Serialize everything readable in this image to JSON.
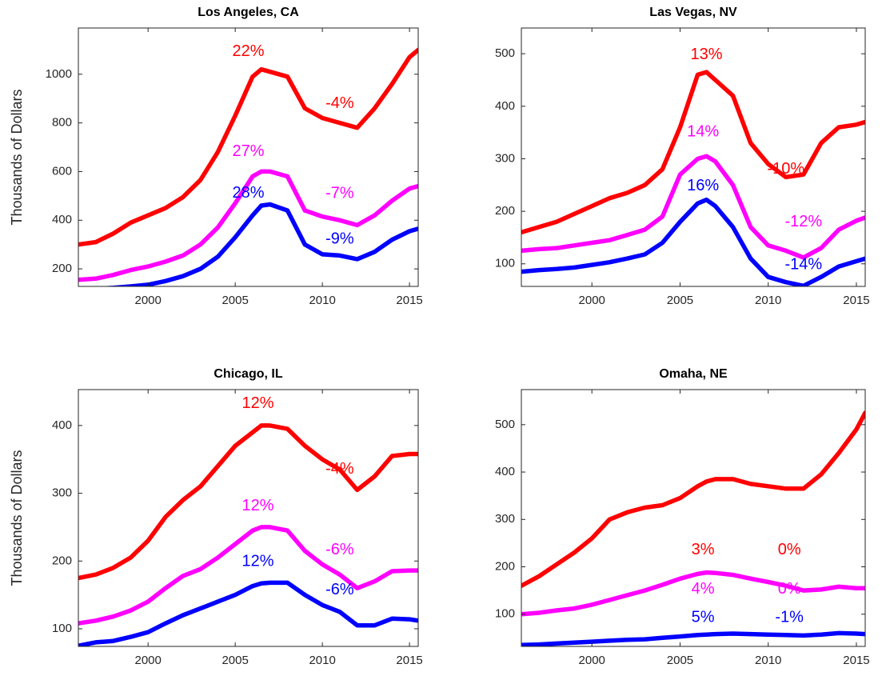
{
  "chart_data": [
    {
      "type": "line",
      "title": "Los Angeles, CA",
      "ylabel": "Thousands of Dollars",
      "x": [
        1996,
        1997,
        1998,
        1999,
        2000,
        2001,
        2002,
        2003,
        2004,
        2005,
        2006,
        2006.5,
        2007,
        2008,
        2009,
        2010,
        2011,
        2012,
        2013,
        2014,
        2015,
        2015.5
      ],
      "series": [
        {
          "color": "#ff0000",
          "values": [
            300,
            310,
            345,
            390,
            420,
            450,
            495,
            565,
            680,
            830,
            990,
            1020,
            1010,
            990,
            860,
            820,
            800,
            780,
            860,
            960,
            1070,
            1100
          ]
        },
        {
          "color": "#ff00ff",
          "values": [
            155,
            160,
            175,
            195,
            210,
            230,
            255,
            300,
            370,
            470,
            580,
            600,
            600,
            580,
            440,
            415,
            400,
            380,
            420,
            480,
            530,
            540
          ]
        },
        {
          "color": "#0000ff",
          "values": [
            115,
            118,
            122,
            128,
            135,
            150,
            170,
            200,
            250,
            330,
            420,
            460,
            465,
            440,
            300,
            260,
            255,
            240,
            270,
            320,
            355,
            365
          ]
        }
      ],
      "xlim": [
        1996,
        2015.5
      ],
      "xticks": [
        2000,
        2005,
        2010,
        2015
      ],
      "ylim": [
        128,
        1190
      ],
      "yticks": [
        200,
        400,
        600,
        800,
        1000
      ],
      "annotations": [
        {
          "text": "22%",
          "color": "#ff0000",
          "x": 2005.75,
          "y": 1092
        },
        {
          "text": "-4%",
          "color": "#ff0000",
          "x": 2011,
          "y": 879
        },
        {
          "text": "27%",
          "color": "#ff00ff",
          "x": 2005.75,
          "y": 682
        },
        {
          "text": "-7%",
          "color": "#ff00ff",
          "x": 2011,
          "y": 508
        },
        {
          "text": "28%",
          "color": "#0000ff",
          "x": 2005.75,
          "y": 511
        },
        {
          "text": "-9%",
          "color": "#0000ff",
          "x": 2011,
          "y": 321
        }
      ]
    },
    {
      "type": "line",
      "title": "Las Vegas, NV",
      "x": [
        1996,
        1997,
        1998,
        1999,
        2000,
        2001,
        2002,
        2003,
        2004,
        2005,
        2006,
        2006.5,
        2007,
        2008,
        2009,
        2010,
        2011,
        2012,
        2013,
        2014,
        2015,
        2015.5
      ],
      "series": [
        {
          "color": "#ff0000",
          "values": [
            160,
            170,
            180,
            195,
            210,
            225,
            235,
            250,
            280,
            360,
            460,
            465,
            450,
            420,
            330,
            290,
            265,
            270,
            330,
            360,
            365,
            370
          ]
        },
        {
          "color": "#ff00ff",
          "values": [
            125,
            128,
            130,
            135,
            140,
            145,
            155,
            165,
            190,
            270,
            300,
            305,
            295,
            250,
            170,
            135,
            125,
            112,
            130,
            165,
            182,
            188
          ]
        },
        {
          "color": "#0000ff",
          "values": [
            85,
            88,
            90,
            93,
            98,
            103,
            110,
            118,
            140,
            180,
            215,
            222,
            210,
            170,
            110,
            75,
            65,
            58,
            75,
            95,
            105,
            110
          ]
        }
      ],
      "xlim": [
        1996,
        2015.5
      ],
      "xticks": [
        2000,
        2005,
        2010,
        2015
      ],
      "ylim": [
        57,
        549
      ],
      "yticks": [
        100,
        200,
        300,
        400,
        500
      ],
      "annotations": [
        {
          "text": "13%",
          "color": "#ff0000",
          "x": 2006.5,
          "y": 498
        },
        {
          "text": "-10%",
          "color": "#ff0000",
          "x": 2011,
          "y": 280
        },
        {
          "text": "14%",
          "color": "#ff00ff",
          "x": 2006.3,
          "y": 351
        },
        {
          "text": "-12%",
          "color": "#ff00ff",
          "x": 2012,
          "y": 179
        },
        {
          "text": "16%",
          "color": "#0000ff",
          "x": 2006.3,
          "y": 248
        },
        {
          "text": "-14%",
          "color": "#0000ff",
          "x": 2012,
          "y": 98
        }
      ]
    },
    {
      "type": "line",
      "title": "Chicago, IL",
      "ylabel": "Thousands of Dollars",
      "x": [
        1996,
        1997,
        1998,
        1999,
        2000,
        2001,
        2002,
        2003,
        2004,
        2005,
        2006,
        2006.5,
        2007,
        2008,
        2009,
        2010,
        2011,
        2012,
        2013,
        2014,
        2015,
        2015.5
      ],
      "series": [
        {
          "color": "#ff0000",
          "values": [
            175,
            180,
            190,
            205,
            230,
            265,
            290,
            310,
            340,
            370,
            390,
            400,
            400,
            395,
            370,
            350,
            335,
            305,
            325,
            355,
            358,
            358
          ]
        },
        {
          "color": "#ff00ff",
          "values": [
            108,
            112,
            118,
            127,
            140,
            160,
            178,
            188,
            205,
            225,
            245,
            250,
            250,
            245,
            215,
            195,
            180,
            160,
            170,
            185,
            186,
            186
          ]
        },
        {
          "color": "#0000ff",
          "values": [
            75,
            80,
            82,
            88,
            95,
            108,
            120,
            130,
            140,
            150,
            163,
            167,
            168,
            168,
            150,
            135,
            125,
            105,
            105,
            115,
            114,
            112
          ]
        }
      ],
      "xlim": [
        1996,
        2015.5
      ],
      "xticks": [
        2000,
        2005,
        2010,
        2015
      ],
      "ylim": [
        74,
        453
      ],
      "yticks": [
        100,
        200,
        300,
        400
      ],
      "annotations": [
        {
          "text": "12%",
          "color": "#ff0000",
          "x": 2006.3,
          "y": 432
        },
        {
          "text": "-4%",
          "color": "#ff0000",
          "x": 2011,
          "y": 335
        },
        {
          "text": "12%",
          "color": "#ff00ff",
          "x": 2006.3,
          "y": 281
        },
        {
          "text": "-6%",
          "color": "#ff00ff",
          "x": 2011,
          "y": 216
        },
        {
          "text": "12%",
          "color": "#0000ff",
          "x": 2006.3,
          "y": 199
        },
        {
          "text": "-6%",
          "color": "#0000ff",
          "x": 2011,
          "y": 157
        }
      ]
    },
    {
      "type": "line",
      "title": "Omaha, NE",
      "x": [
        1996,
        1997,
        1998,
        1999,
        2000,
        2001,
        2002,
        2003,
        2004,
        2005,
        2006,
        2006.5,
        2007,
        2008,
        2009,
        2010,
        2011,
        2012,
        2013,
        2014,
        2015,
        2015.5
      ],
      "series": [
        {
          "color": "#ff0000",
          "values": [
            160,
            180,
            205,
            230,
            260,
            300,
            315,
            325,
            330,
            345,
            370,
            380,
            385,
            385,
            375,
            370,
            365,
            365,
            395,
            440,
            490,
            525
          ]
        },
        {
          "color": "#ff00ff",
          "values": [
            100,
            103,
            108,
            112,
            120,
            130,
            140,
            150,
            162,
            175,
            185,
            188,
            187,
            183,
            175,
            168,
            160,
            150,
            152,
            158,
            155,
            155
          ]
        },
        {
          "color": "#0000ff",
          "values": [
            35,
            36,
            38,
            40,
            42,
            44,
            46,
            47,
            50,
            53,
            56,
            57,
            58,
            59,
            58,
            57,
            56,
            55,
            57,
            60,
            59,
            58
          ]
        }
      ],
      "xlim": [
        1996,
        2015.5
      ],
      "xticks": [
        2000,
        2005,
        2010,
        2015
      ],
      "ylim": [
        32,
        574
      ],
      "yticks": [
        100,
        200,
        300,
        400,
        500
      ],
      "annotations": [
        {
          "text": "3%",
          "color": "#ff0000",
          "x": 2006.3,
          "y": 235
        },
        {
          "text": "0%",
          "color": "#ff0000",
          "x": 2011.2,
          "y": 235
        },
        {
          "text": "4%",
          "color": "#ff00ff",
          "x": 2006.3,
          "y": 152
        },
        {
          "text": "0%",
          "color": "#ff00ff",
          "x": 2011.2,
          "y": 152
        },
        {
          "text": "5%",
          "color": "#0000ff",
          "x": 2006.3,
          "y": 92
        },
        {
          "text": "-1%",
          "color": "#0000ff",
          "x": 2011.2,
          "y": 92
        }
      ]
    }
  ]
}
